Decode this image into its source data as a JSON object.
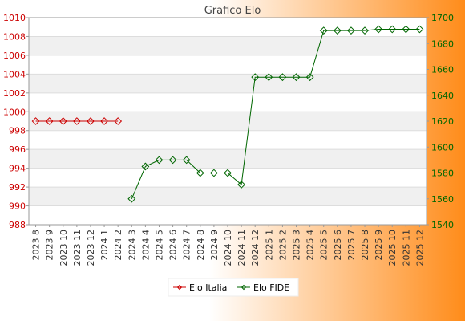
{
  "chart_data": {
    "type": "line",
    "title": "Grafico Elo",
    "categories": [
      "2023 8",
      "2023 9",
      "2023 10",
      "2023 11",
      "2023 12",
      "2024 1",
      "2024 2",
      "2024 3",
      "2024 4",
      "2024 5",
      "2024 6",
      "2024 7",
      "2024 8",
      "2024 9",
      "2024 10",
      "2024 11",
      "2024 12",
      "2025 1",
      "2025 2",
      "2025 3",
      "2025 4",
      "2025 5",
      "2025 6",
      "2025 7",
      "2025 8",
      "2025 9",
      "2025 10",
      "2025 11",
      "2025 12"
    ],
    "left_axis": {
      "ylim": [
        988,
        1010
      ],
      "ticks": [
        988,
        990,
        992,
        994,
        996,
        998,
        1000,
        1002,
        1004,
        1006,
        1008,
        1010
      ],
      "color": "#cc0000"
    },
    "right_axis": {
      "ylim": [
        1540,
        1700
      ],
      "ticks": [
        1540,
        1560,
        1580,
        1600,
        1620,
        1640,
        1660,
        1680,
        1700
      ],
      "color": "#006600"
    },
    "series": [
      {
        "name": "Elo Italia",
        "axis": "left",
        "color": "#cc0000",
        "values": [
          999,
          999,
          999,
          999,
          999,
          999,
          999,
          null,
          null,
          null,
          null,
          null,
          null,
          null,
          null,
          null,
          null,
          null,
          null,
          null,
          null,
          null,
          null,
          null,
          null,
          null,
          null,
          null,
          null
        ]
      },
      {
        "name": "Elo FIDE",
        "axis": "right",
        "color": "#006600",
        "values": [
          null,
          null,
          null,
          null,
          null,
          null,
          null,
          1560,
          1585,
          1590,
          1590,
          1590,
          1580,
          1580,
          1580,
          1571,
          1654,
          1654,
          1654,
          1654,
          1654,
          1690,
          1690,
          1690,
          1690,
          1691,
          1691,
          1691,
          1691
        ]
      }
    ],
    "grid": true,
    "legend_position": "bottom"
  },
  "colors": {
    "background_left": "#ffffff",
    "background_right": "#ff8c1a",
    "band_light": "#ffffff",
    "band_dark": "#f0f0f0",
    "title": "#444444"
  }
}
